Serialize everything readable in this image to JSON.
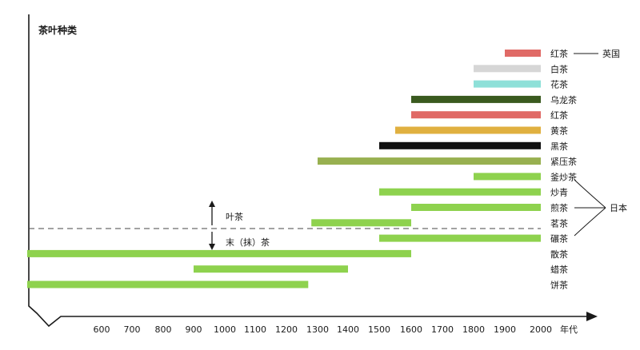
{
  "chart_data": {
    "type": "bar",
    "orientation": "horizontal-range",
    "title": "茶叶种类",
    "xlabel": "年代",
    "x_ticks": [
      600,
      700,
      800,
      900,
      1000,
      1100,
      1200,
      1300,
      1400,
      1500,
      1600,
      1700,
      1800,
      1900,
      2000
    ],
    "xlim": [
      450,
      2000
    ],
    "grid": false,
    "series": [
      {
        "label": "红茶",
        "start": 1900,
        "end": 2000,
        "color": "#e06a66"
      },
      {
        "label": "白茶",
        "start": 1800,
        "end": 2000,
        "color": "#d6d6d6"
      },
      {
        "label": "花茶",
        "start": 1800,
        "end": 2000,
        "color": "#8ee0d8"
      },
      {
        "label": "乌龙茶",
        "start": 1600,
        "end": 2000,
        "color": "#3a5a1f"
      },
      {
        "label": "红茶",
        "start": 1600,
        "end": 2000,
        "color": "#e06a66"
      },
      {
        "label": "黄茶",
        "start": 1550,
        "end": 2000,
        "color": "#e0b040"
      },
      {
        "label": "黑茶",
        "start": 1500,
        "end": 2000,
        "color": "#111111"
      },
      {
        "label": "紧压茶",
        "start": 1300,
        "end": 2000,
        "color": "#98b050"
      },
      {
        "label": "釜炒茶",
        "start": 1800,
        "end": 2000,
        "color": "#8ed24e"
      },
      {
        "label": "炒青",
        "start": 1500,
        "end": 2000,
        "color": "#8ed24e"
      },
      {
        "label": "煎茶",
        "start": 1600,
        "end": 2000,
        "color": "#8ed24e"
      },
      {
        "label": "茗茶",
        "start": 1280,
        "end": 1600,
        "color": "#8ed24e"
      },
      {
        "label": "碾茶",
        "start": 1500,
        "end": 2000,
        "color": "#8ed24e"
      },
      {
        "label": "散茶",
        "start": 450,
        "end": 1600,
        "color": "#8ed24e"
      },
      {
        "label": "蜡茶",
        "start": 900,
        "end": 1400,
        "color": "#8ed24e"
      },
      {
        "label": "饼茶",
        "start": 450,
        "end": 1270,
        "color": "#8ed24e"
      }
    ],
    "annotations": {
      "england": "英国",
      "japan": "日本",
      "leaf_tea": "叶茶",
      "powder_tea": "末（抹）茶"
    }
  }
}
